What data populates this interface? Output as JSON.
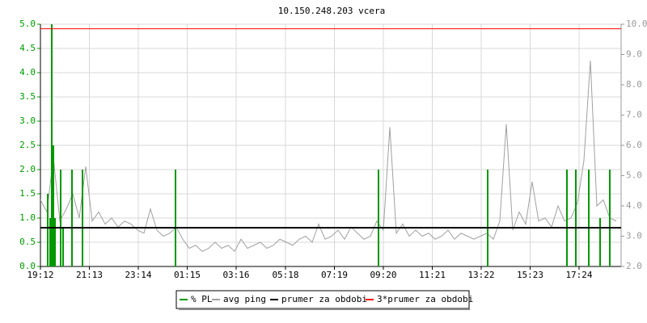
{
  "chart_data": {
    "type": "line",
    "title": "10.150.248.203 vcera",
    "xlim": [
      0,
      1436
    ],
    "xticks": [
      {
        "value": 0,
        "label": "19:12"
      },
      {
        "value": 121,
        "label": "21:13"
      },
      {
        "value": 242,
        "label": "23:14"
      },
      {
        "value": 363,
        "label": "01:15"
      },
      {
        "value": 484,
        "label": "03:16"
      },
      {
        "value": 606,
        "label": "05:18"
      },
      {
        "value": 727,
        "label": "07:19"
      },
      {
        "value": 848,
        "label": "09:20"
      },
      {
        "value": 969,
        "label": "11:21"
      },
      {
        "value": 1090,
        "label": "13:22"
      },
      {
        "value": 1211,
        "label": "15:23"
      },
      {
        "value": 1332,
        "label": "17:24"
      }
    ],
    "ylim": [
      0,
      5
    ],
    "yticks": [
      {
        "value": 0,
        "label": "0.0"
      },
      0.5,
      {
        "value": 1,
        "label": "1.0"
      },
      1.5,
      {
        "value": 2,
        "label": "2.0"
      },
      2.5,
      {
        "value": 3,
        "label": "3.0"
      },
      3.5,
      {
        "value": 4,
        "label": "4.0"
      },
      4.5,
      {
        "value": 5,
        "label": "5.0"
      }
    ],
    "y2lim": [
      2,
      10
    ],
    "y2ticks": [
      {
        "value": 2,
        "label": "2.0"
      },
      {
        "value": 3,
        "label": "3.0"
      },
      {
        "value": 4,
        "label": "4.0"
      },
      {
        "value": 5,
        "label": "5.0"
      },
      {
        "value": 6,
        "label": "6.0"
      },
      {
        "value": 7,
        "label": "7.0"
      },
      {
        "value": 8,
        "label": "8.0"
      },
      {
        "value": 9,
        "label": "9.0"
      },
      {
        "value": 10,
        "label": "10.0"
      }
    ],
    "grid": true,
    "series": [
      {
        "name": "% PL",
        "color": "#009900",
        "style": "spikes",
        "x": [
          18,
          24,
          28,
          32,
          36,
          50,
          56,
          78,
          104,
          334,
          836,
          1106,
          1302,
          1324,
          1356,
          1384,
          1408
        ],
        "values": [
          1.5,
          1.0,
          5.0,
          2.5,
          1.0,
          2.0,
          0.8,
          2.0,
          2.0,
          2.0,
          2.0,
          2.0,
          2.0,
          2.0,
          2.0,
          1.0,
          2.0
        ]
      },
      {
        "name": "avg ping",
        "color": "#a0a0a0",
        "axis": "y2",
        "style": "line",
        "x": [
          0,
          16,
          32,
          48,
          64,
          80,
          96,
          112,
          128,
          144,
          160,
          176,
          192,
          208,
          224,
          240,
          256,
          272,
          288,
          304,
          320,
          336,
          352,
          368,
          384,
          400,
          416,
          432,
          448,
          464,
          480,
          496,
          512,
          528,
          544,
          560,
          576,
          592,
          608,
          624,
          640,
          656,
          672,
          688,
          704,
          720,
          736,
          752,
          768,
          784,
          800,
          816,
          832,
          848,
          864,
          880,
          896,
          912,
          928,
          944,
          960,
          976,
          992,
          1008,
          1024,
          1040,
          1056,
          1072,
          1088,
          1104,
          1120,
          1136,
          1152,
          1168,
          1184,
          1200,
          1216,
          1232,
          1248,
          1264,
          1280,
          1296,
          1312,
          1328,
          1344,
          1360,
          1376,
          1392,
          1408,
          1424
        ],
        "values": [
          4.2,
          3.8,
          5.6,
          3.5,
          3.9,
          4.4,
          3.6,
          5.3,
          3.5,
          3.8,
          3.4,
          3.6,
          3.3,
          3.5,
          3.4,
          3.2,
          3.1,
          3.9,
          3.2,
          3.0,
          3.1,
          3.3,
          2.9,
          2.6,
          2.7,
          2.5,
          2.6,
          2.8,
          2.6,
          2.7,
          2.5,
          2.9,
          2.6,
          2.7,
          2.8,
          2.6,
          2.7,
          2.9,
          2.8,
          2.7,
          2.9,
          3.0,
          2.8,
          3.4,
          2.9,
          3.0,
          3.2,
          2.9,
          3.3,
          3.1,
          2.9,
          3.0,
          3.5,
          3.2,
          6.6,
          3.1,
          3.4,
          3.0,
          3.2,
          3.0,
          3.1,
          2.9,
          3.0,
          3.2,
          2.9,
          3.1,
          3.0,
          2.9,
          3.0,
          3.1,
          2.9,
          3.5,
          6.7,
          3.2,
          3.8,
          3.4,
          4.8,
          3.5,
          3.6,
          3.3,
          4.0,
          3.5,
          3.6,
          4.1,
          5.5,
          8.8,
          4.0,
          4.2,
          3.6,
          3.5
        ]
      },
      {
        "name": "prumer za obdobi",
        "color": "#000000",
        "axis": "y2",
        "style": "hline",
        "values": [
          3.28
        ]
      },
      {
        "name": "3*prumer za obdobi",
        "color": "#ff0000",
        "axis": "y2",
        "style": "hline",
        "values": [
          9.85
        ]
      }
    ]
  }
}
